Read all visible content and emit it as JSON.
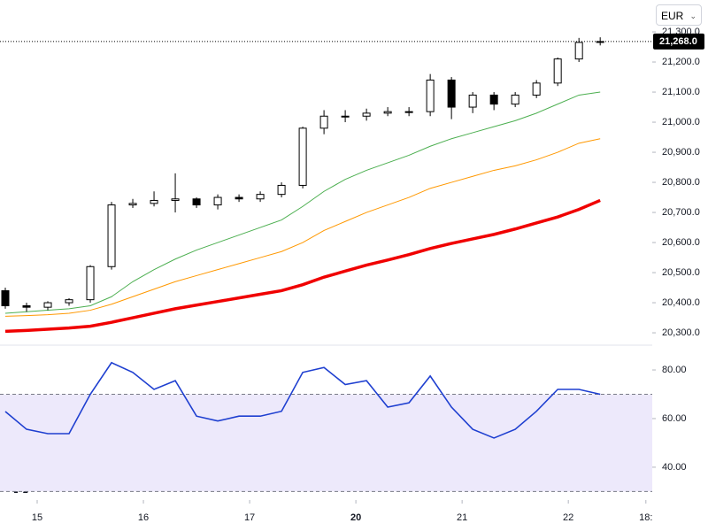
{
  "chart_data": {
    "type": "candlestick",
    "currency": "EUR",
    "x": [
      -0.3,
      -0.1,
      0.1,
      0.3,
      0.5,
      0.7,
      0.9,
      1.1,
      1.3,
      1.5,
      1.7,
      1.9,
      2.1,
      2.3,
      2.5,
      2.7,
      2.9,
      3.1,
      3.3,
      3.5,
      3.7,
      3.9,
      4.1,
      4.3,
      4.5,
      4.7,
      4.9,
      5.1,
      5.3
    ],
    "xlim": [
      -0.35,
      5.79
    ],
    "xticks": [
      {
        "value": 0,
        "label": "15"
      },
      {
        "value": 1,
        "label": "16"
      },
      {
        "value": 2,
        "label": "17"
      },
      {
        "value": 3,
        "label": "20"
      },
      {
        "value": 4,
        "label": "21"
      },
      {
        "value": 5,
        "label": "22"
      },
      {
        "value": 5.73,
        "label": "18:"
      }
    ],
    "open": [
      20440,
      20390,
      20385,
      20400,
      20410,
      20520,
      20725,
      20730,
      20740,
      20745,
      20725,
      20750,
      20745,
      20760,
      20790,
      20980,
      21020,
      21020,
      21030,
      21035,
      21035,
      21140,
      21050,
      21090,
      21060,
      21090,
      21130,
      21210,
      21265
    ],
    "high": [
      20450,
      20400,
      20405,
      20415,
      20525,
      20735,
      20745,
      20770,
      20830,
      20750,
      20760,
      20760,
      20770,
      20800,
      20985,
      21040,
      21040,
      21045,
      21050,
      21050,
      21160,
      21150,
      21100,
      21100,
      21100,
      21140,
      21215,
      21280,
      21282
    ],
    "low": [
      20380,
      20370,
      20375,
      20390,
      20400,
      20510,
      20715,
      20720,
      20700,
      20715,
      20710,
      20735,
      20735,
      20750,
      20780,
      20960,
      21000,
      21005,
      21020,
      21020,
      21020,
      21010,
      21030,
      21040,
      21050,
      21080,
      21120,
      21200,
      21255
    ],
    "close": [
      20390,
      20385,
      20400,
      20410,
      20520,
      20725,
      20730,
      20740,
      20745,
      20725,
      20750,
      20745,
      20760,
      20790,
      20980,
      21020,
      21020,
      21030,
      21035,
      21035,
      21140,
      21050,
      21090,
      21060,
      21090,
      21130,
      21210,
      21265,
      21268
    ],
    "up_color": "#ffffff",
    "down_color": "#000000",
    "moving_averages": [
      {
        "color": "#4caf50",
        "width": 1,
        "values": [
          20365,
          20370,
          20375,
          20380,
          20390,
          20420,
          20470,
          20510,
          20545,
          20575,
          20600,
          20625,
          20650,
          20675,
          20720,
          20770,
          20810,
          20840,
          20865,
          20890,
          20920,
          20945,
          20965,
          20985,
          21005,
          21030,
          21060,
          21090,
          21100
        ]
      },
      {
        "color": "#ff9800",
        "width": 1,
        "values": [
          20355,
          20357,
          20360,
          20365,
          20375,
          20395,
          20420,
          20445,
          20470,
          20490,
          20510,
          20530,
          20550,
          20570,
          20600,
          20640,
          20670,
          20700,
          20725,
          20750,
          20780,
          20800,
          20820,
          20840,
          20855,
          20875,
          20900,
          20930,
          20945
        ]
      },
      {
        "color": "#f00000",
        "width": 3.5,
        "values": [
          20305,
          20308,
          20312,
          20316,
          20322,
          20335,
          20350,
          20365,
          20380,
          20392,
          20404,
          20416,
          20428,
          20440,
          20460,
          20485,
          20505,
          20525,
          20542,
          20560,
          20580,
          20597,
          20612,
          20627,
          20645,
          20665,
          20685,
          20710,
          20740
        ]
      }
    ],
    "ylim": [
      20259,
      21406
    ],
    "yticks": [
      {
        "value": 20300,
        "label": "20,300.0"
      },
      {
        "value": 20400,
        "label": "20,400.0"
      },
      {
        "value": 20500,
        "label": "20,500.0"
      },
      {
        "value": 20600,
        "label": "20,600.0"
      },
      {
        "value": 20700,
        "label": "20,700.0"
      },
      {
        "value": 20800,
        "label": "20,800.0"
      },
      {
        "value": 20900,
        "label": "20,900.0"
      },
      {
        "value": 21000,
        "label": "21,000.0"
      },
      {
        "value": 21100,
        "label": "21,100.0"
      },
      {
        "value": 21200,
        "label": "21,200.0"
      },
      {
        "value": 21300,
        "label": "21,300.0"
      }
    ],
    "last_price": {
      "value": 21268,
      "label": "21,268.0"
    },
    "rsi": {
      "color": "#1e3fd0",
      "values": [
        62.9,
        55.6,
        53.8,
        53.8,
        70,
        83,
        79,
        72,
        75.6,
        61,
        59,
        61,
        61,
        63,
        79,
        81,
        74,
        75.6,
        64.7,
        66.5,
        77.5,
        64.7,
        55.6,
        52,
        55.6,
        63,
        72,
        72,
        70
      ],
      "ylim": [
        26.5,
        90.2
      ],
      "yticks": [
        {
          "value": 80,
          "label": "80.00"
        },
        {
          "value": 60,
          "label": "60.00"
        },
        {
          "value": 40,
          "label": "40.00"
        }
      ],
      "band": [
        30,
        70
      ]
    }
  }
}
